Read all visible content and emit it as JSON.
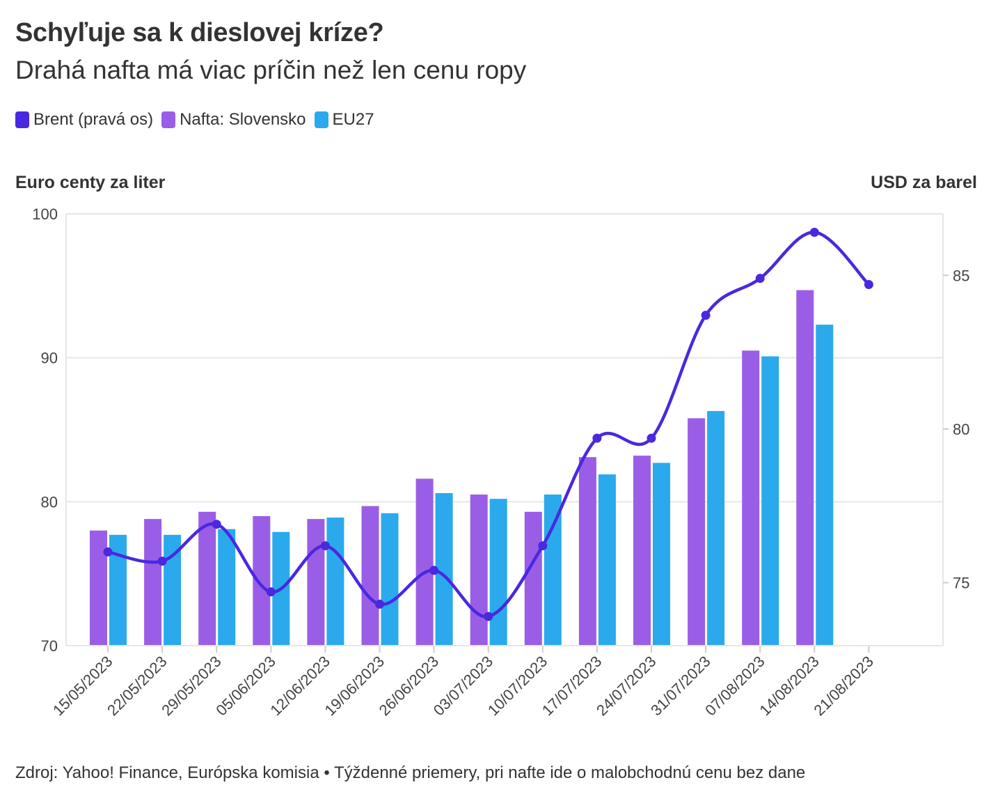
{
  "header": {
    "title": "Schyľuje sa k dieslovej kríze?",
    "subtitle": "Drahá nafta má viac príčin než len cenu ropy"
  },
  "legend": [
    {
      "label": "Brent (pravá os)",
      "color": "#4a28e0"
    },
    {
      "label": "Nafta: Slovensko",
      "color": "#9a5ee6"
    },
    {
      "label": "EU27",
      "color": "#2aaaec"
    }
  ],
  "axis_titles": {
    "left": "Euro centy za liter",
    "right": "USD za barel"
  },
  "footer": "Zdroj: Yahoo! Finance, Európska komisia • Týždenné priemery, pri nafte ide o malobchodnú cenu bez dane",
  "chart_data": {
    "type": "bar",
    "categories": [
      "15/05/2023",
      "22/05/2023",
      "29/05/2023",
      "05/06/2023",
      "12/06/2023",
      "19/06/2023",
      "26/06/2023",
      "03/07/2023",
      "10/07/2023",
      "17/07/2023",
      "24/07/2023",
      "31/07/2023",
      "07/08/2023",
      "14/08/2023",
      "21/08/2023"
    ],
    "series": [
      {
        "name": "Nafta: Slovensko",
        "axis": "left",
        "type": "bar",
        "color": "#9a5ee6",
        "values": [
          78.0,
          78.8,
          79.3,
          79.0,
          78.8,
          79.7,
          81.6,
          80.5,
          79.3,
          83.1,
          83.2,
          85.8,
          90.5,
          94.7,
          null
        ]
      },
      {
        "name": "EU27",
        "axis": "left",
        "type": "bar",
        "color": "#2aaaec",
        "values": [
          77.7,
          77.7,
          78.1,
          77.9,
          78.9,
          79.2,
          80.6,
          80.2,
          80.5,
          81.9,
          82.7,
          86.3,
          90.1,
          92.3,
          null
        ]
      },
      {
        "name": "Brent (pravá os)",
        "axis": "right",
        "type": "line",
        "color": "#4a28e0",
        "values": [
          76.0,
          75.7,
          76.9,
          74.7,
          76.2,
          74.3,
          75.4,
          73.9,
          76.2,
          79.7,
          79.7,
          83.7,
          84.9,
          86.4,
          84.7
        ]
      }
    ],
    "y_left": {
      "min": 70,
      "max": 100,
      "ticks": [
        70,
        80,
        90,
        100
      ]
    },
    "y_right": {
      "min": 72.95,
      "max": 87.0,
      "ticks": [
        75,
        80,
        85
      ]
    },
    "grid": true
  }
}
